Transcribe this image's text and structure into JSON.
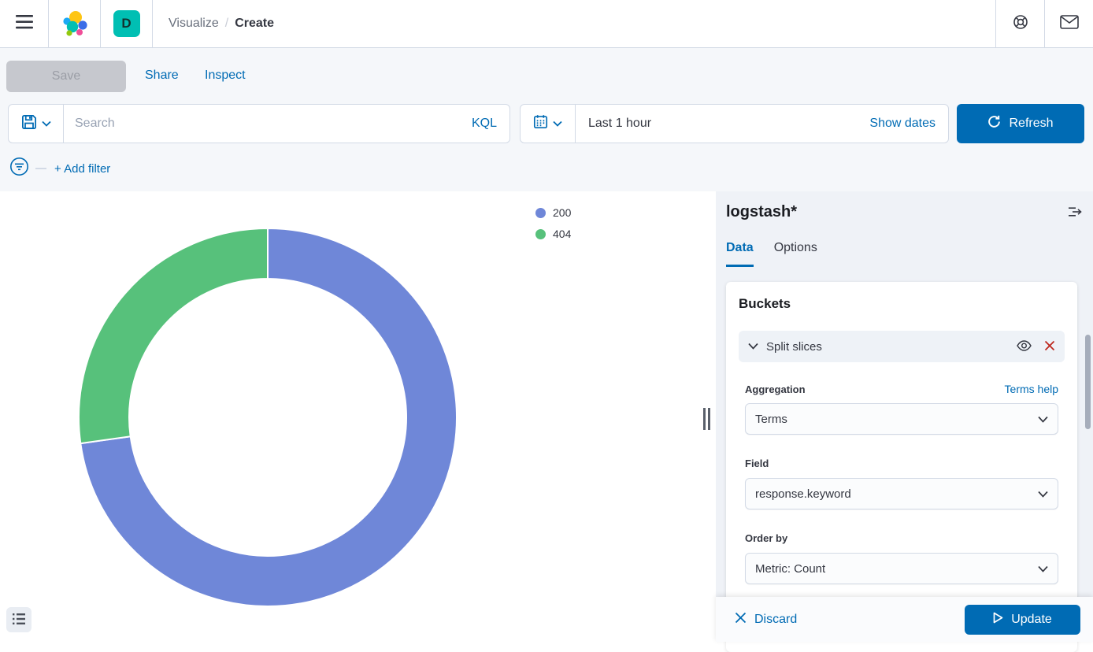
{
  "header": {
    "breadcrumb": {
      "section": "Visualize",
      "separator": "/",
      "current": "Create"
    },
    "space_badge": "D"
  },
  "toolbar": {
    "save_label": "Save",
    "share_label": "Share",
    "inspect_label": "Inspect"
  },
  "search_bar": {
    "placeholder": "Search",
    "kql_label": "KQL",
    "time_range": "Last 1 hour",
    "show_dates_label": "Show dates",
    "refresh_label": "Refresh"
  },
  "filter_bar": {
    "add_filter_label": "+ Add filter"
  },
  "chart_data": {
    "type": "pie",
    "donut": true,
    "title": "",
    "categories": [
      "200",
      "404"
    ],
    "values_percent": [
      72.8,
      27.2
    ],
    "colors": [
      "#6F87D8",
      "#57C17B"
    ],
    "legend_position": "top-right",
    "start_angle_deg": 0
  },
  "legend": {
    "items": [
      {
        "label": "200",
        "color": "#6F87D8"
      },
      {
        "label": "404",
        "color": "#57C17B"
      }
    ]
  },
  "panel": {
    "index_pattern": "logstash*",
    "tabs": [
      {
        "label": "Data",
        "active": true
      },
      {
        "label": "Options",
        "active": false
      }
    ],
    "buckets": {
      "heading": "Buckets",
      "split_slices_label": "Split slices",
      "aggregation": {
        "label": "Aggregation",
        "help_label": "Terms help",
        "value": "Terms"
      },
      "field": {
        "label": "Field",
        "value": "response.keyword"
      },
      "order_by": {
        "label": "Order by",
        "value": "Metric: Count"
      }
    },
    "footer": {
      "discard_label": "Discard",
      "update_label": "Update"
    }
  },
  "colors": {
    "primary": "#006BB4",
    "danger": "#BD271E",
    "space_badge_bg": "#00BFB3",
    "toolbar_bg": "#F5F7FA",
    "panel_bg": "#EFF2F7"
  }
}
